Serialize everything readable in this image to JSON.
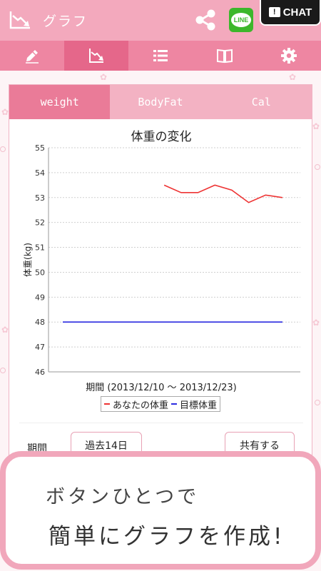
{
  "appbar": {
    "title": "グラフ",
    "chat_label": "CHAT",
    "line_label": "LINE"
  },
  "nav": {
    "tabs": [
      {
        "icon": "pencil-icon",
        "active": false
      },
      {
        "icon": "graph-icon",
        "active": true
      },
      {
        "icon": "list-icon",
        "active": false
      },
      {
        "icon": "book-icon",
        "active": false
      },
      {
        "icon": "gear-icon",
        "active": false
      }
    ]
  },
  "subtabs": [
    "weight",
    "BodyFat",
    "Cal"
  ],
  "chart_data": {
    "type": "line",
    "title": "体重の変化",
    "ylabel": "体重(kg)",
    "xlabel": "期間 (2013/12/10 ～ 2013/12/23)",
    "ylim": [
      46,
      55
    ],
    "yticks": [
      "55",
      "54",
      "53",
      "52",
      "51",
      "50",
      "49",
      "48",
      "47",
      "46"
    ],
    "x": [
      0,
      1,
      2,
      3,
      4,
      5,
      6,
      7,
      8,
      9,
      10,
      11,
      12,
      13
    ],
    "series": [
      {
        "name": "あなたの体重",
        "color": "#ee3333",
        "values": [
          null,
          null,
          null,
          null,
          null,
          null,
          53.5,
          53.2,
          53.2,
          53.5,
          53.3,
          52.8,
          53.1,
          53.0
        ]
      },
      {
        "name": "目標体重",
        "color": "#2b2be0",
        "values": [
          48,
          48,
          48,
          48,
          48,
          48,
          48,
          48,
          48,
          48,
          48,
          48,
          48,
          48
        ]
      }
    ],
    "grid": true,
    "legend": "bottom"
  },
  "controls": {
    "period_label": "期間",
    "period_value": "過去14日",
    "share_label": "共有する"
  },
  "promo": {
    "line1": "ボタンひとつで",
    "line2": "簡単にグラフを作成!"
  },
  "colors": {
    "appbar": "#f3a9bd",
    "navbar": "#ee86a2",
    "accent": "#ea7b98"
  }
}
